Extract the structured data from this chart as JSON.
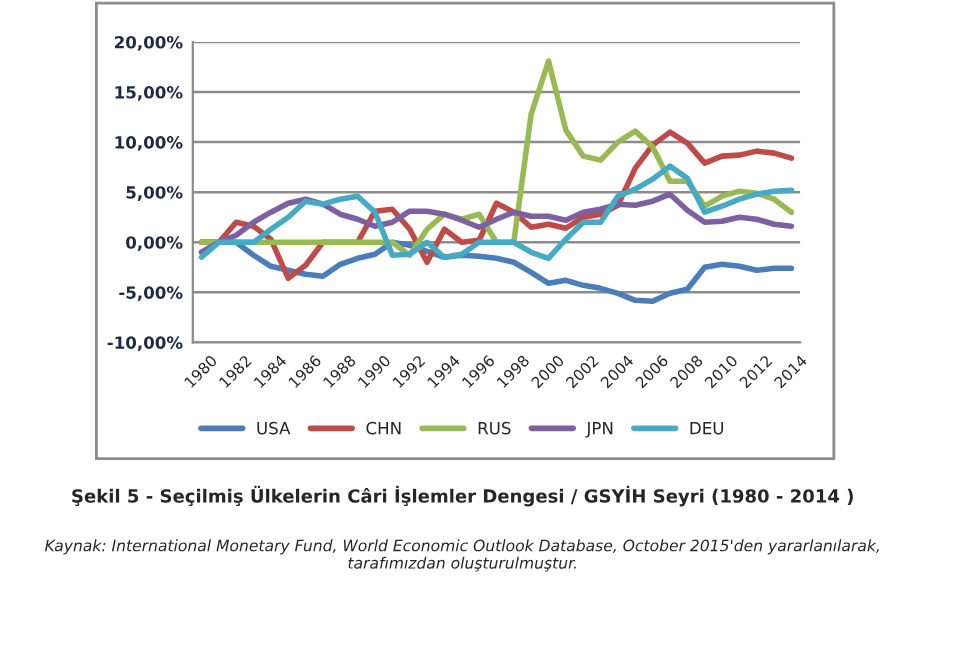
{
  "chart_data": {
    "type": "line",
    "title": "Şekil 5 - Seçilmiş Ülkelerin Câri İşlemler Dengesi / GSYİH Seyri (1980 - 2014 )",
    "annotations": [
      "Kaynak: International Monetary Fund, World Economic Outlook Database, October 2015'den yararlanılarak, tarafımızdan oluşturulmuştur."
    ],
    "x": [
      1980,
      1981,
      1982,
      1983,
      1984,
      1985,
      1986,
      1987,
      1988,
      1989,
      1990,
      1991,
      1992,
      1993,
      1994,
      1995,
      1996,
      1997,
      1998,
      1999,
      2000,
      2001,
      2002,
      2003,
      2004,
      2005,
      2006,
      2007,
      2008,
      2009,
      2010,
      2011,
      2012,
      2013,
      2014
    ],
    "series": [
      {
        "name": "USA",
        "color": "#4a7ebb",
        "values": [
          0,
          0,
          0,
          -1.3,
          -2.4,
          -2.8,
          -3.2,
          -3.4,
          -2.2,
          -1.6,
          -1.2,
          0,
          -0.3,
          -0.9,
          -1.5,
          -1.3,
          -1.4,
          -1.6,
          -2.0,
          -3.0,
          -4.1,
          -3.8,
          -4.3,
          -4.6,
          -5.1,
          -5.8,
          -5.9,
          -5.1,
          -4.7,
          -2.5,
          -2.2,
          -2.4,
          -2.8,
          -2.6,
          -2.6
        ]
      },
      {
        "name": "CHN",
        "color": "#be4b48",
        "values": [
          0,
          0,
          2.0,
          1.6,
          0.3,
          -3.6,
          -2.3,
          0,
          0,
          0,
          3.1,
          3.3,
          1.3,
          -2.0,
          1.3,
          0,
          0.2,
          3.9,
          3.0,
          1.5,
          1.8,
          1.4,
          2.5,
          2.8,
          3.7,
          7.4,
          9.7,
          11.0,
          9.9,
          7.9,
          8.6,
          8.7,
          9.1,
          8.9,
          8.4
        ]
      },
      {
        "name": "RUS",
        "color": "#98b954",
        "values": [
          0,
          0,
          0,
          0,
          0,
          0,
          0,
          0,
          0,
          0,
          0,
          0,
          -1.3,
          1.3,
          2.8,
          2.3,
          2.8,
          0,
          0,
          12.8,
          18.1,
          11.2,
          8.6,
          8.2,
          10.0,
          11.1,
          9.5,
          6.1,
          6.1,
          3.6,
          4.6,
          5.1,
          4.9,
          4.3,
          3.0
        ]
      },
      {
        "name": "JPN",
        "color": "#7d60a0",
        "values": [
          -1.0,
          0,
          0.7,
          2.0,
          3.0,
          3.9,
          4.3,
          3.8,
          2.8,
          2.3,
          1.6,
          2.0,
          3.1,
          3.1,
          2.8,
          2.2,
          1.5,
          2.3,
          3.0,
          2.6,
          2.6,
          2.2,
          3.0,
          3.3,
          3.8,
          3.7,
          4.1,
          4.8,
          3.2,
          2.0,
          2.1,
          2.5,
          2.3,
          1.8,
          1.6
        ]
      },
      {
        "name": "DEU",
        "color": "#46aac5",
        "values": [
          -1.5,
          0,
          0,
          0,
          1.3,
          2.5,
          4.1,
          3.8,
          4.3,
          4.6,
          3.0,
          -1.3,
          -1.2,
          0,
          -1.5,
          -1.2,
          0,
          0,
          0,
          -1.0,
          -1.6,
          0.3,
          2.0,
          2.0,
          4.6,
          5.3,
          6.3,
          7.6,
          6.4,
          3.0,
          3.6,
          4.3,
          4.8,
          5.1,
          5.2
        ]
      }
    ],
    "xlim": [
      1979.5,
      2014.5
    ],
    "xticks": [
      1980,
      1982,
      1984,
      1986,
      1988,
      1990,
      1992,
      1994,
      1996,
      1998,
      2000,
      2002,
      2004,
      2006,
      2008,
      2010,
      2012,
      2014
    ],
    "ylim": [
      -10,
      20
    ],
    "yticks": [
      {
        "value": -10,
        "label": "-10,00%"
      },
      {
        "value": -5,
        "label": "-5,00%"
      },
      {
        "value": 0,
        "label": "0,00%"
      },
      {
        "value": 5,
        "label": "5,00%"
      },
      {
        "value": 10,
        "label": "10,00%"
      },
      {
        "value": 15,
        "label": "15,00%"
      },
      {
        "value": 20,
        "label": "20,00%"
      }
    ],
    "grid": "y",
    "legend": "bottom",
    "marker": "none",
    "line_style": "solid"
  }
}
